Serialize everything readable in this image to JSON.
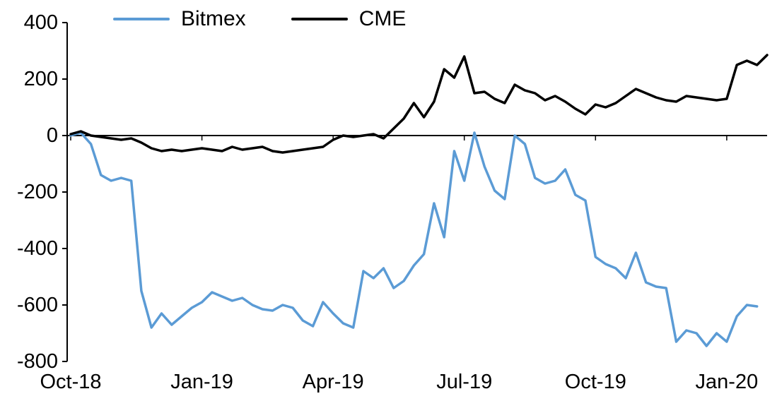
{
  "chart_data": {
    "type": "line",
    "x_axis": {
      "tick_labels": [
        "Oct-18",
        "Jan-19",
        "Apr-19",
        "Jul-19",
        "Oct-19",
        "Jan-20"
      ],
      "tick_weeks": [
        0,
        13,
        26,
        39,
        52,
        65
      ],
      "unit": "weekly points from Oct-2018 to early Feb-2020"
    },
    "y_axis": {
      "ticks": [
        400,
        200,
        0,
        -200,
        -400,
        -600,
        -800
      ],
      "range": [
        -800,
        400
      ]
    },
    "grid": false,
    "legend": {
      "position": "top",
      "entries": [
        "Bitmex",
        "CME"
      ]
    },
    "series": [
      {
        "name": "Bitmex",
        "color": "#5B9BD5",
        "values": [
          0,
          10,
          -30,
          -140,
          -160,
          -150,
          -160,
          -550,
          -680,
          -630,
          -670,
          -640,
          -610,
          -590,
          -555,
          -570,
          -585,
          -575,
          -600,
          -615,
          -620,
          -600,
          -610,
          -655,
          -675,
          -590,
          -630,
          -665,
          -680,
          -480,
          -505,
          -470,
          -540,
          -515,
          -460,
          -420,
          -240,
          -360,
          -55,
          -160,
          10,
          -110,
          -195,
          -225,
          0,
          -30,
          -150,
          -170,
          -160,
          -120,
          -210,
          -230,
          -430,
          -455,
          -470,
          -505,
          -415,
          -520,
          -535,
          -540,
          -730,
          -690,
          -700,
          -745,
          -700,
          -730,
          -640,
          -600,
          -605
        ]
      },
      {
        "name": "CME",
        "color": "#000000",
        "values": [
          5,
          15,
          0,
          -5,
          -10,
          -15,
          -10,
          -25,
          -45,
          -55,
          -50,
          -55,
          -50,
          -45,
          -50,
          -55,
          -40,
          -50,
          -45,
          -40,
          -55,
          -60,
          -55,
          -50,
          -45,
          -40,
          -15,
          0,
          -5,
          0,
          5,
          -10,
          25,
          60,
          115,
          65,
          120,
          235,
          205,
          280,
          150,
          155,
          130,
          115,
          180,
          160,
          150,
          125,
          140,
          120,
          95,
          75,
          110,
          100,
          115,
          140,
          165,
          150,
          135,
          125,
          120,
          140,
          135,
          130,
          125,
          130,
          250,
          265,
          250,
          285
        ]
      }
    ]
  }
}
